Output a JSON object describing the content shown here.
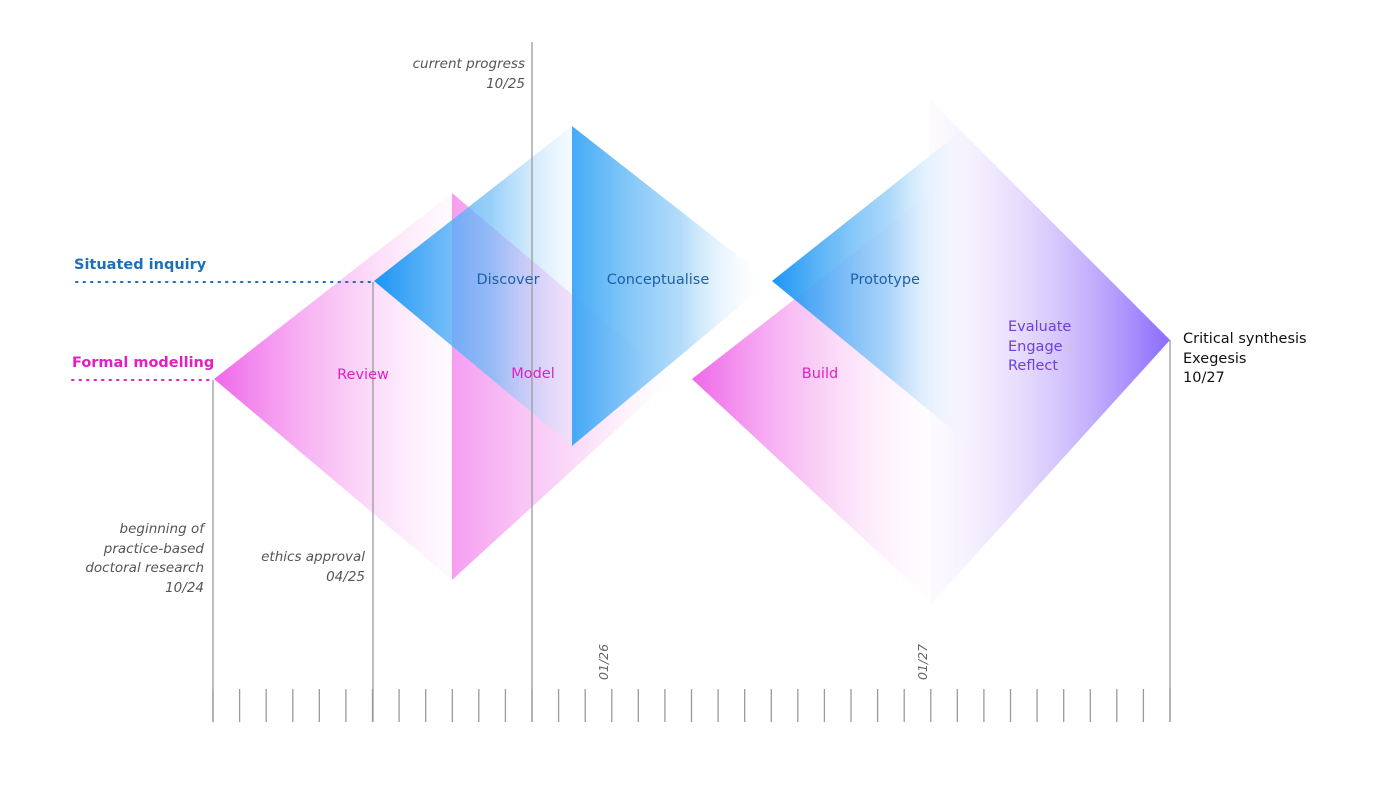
{
  "colors": {
    "situated": "#1e6fb5",
    "formal": "#e020c0",
    "blue": "#1a9af5",
    "magenta": "#ee66ee",
    "purple": "#8866ff",
    "purple_text": "#6f3fd8",
    "blue_text": "#1f5fa8",
    "axis": "#9a9a9a"
  },
  "lanes": {
    "situated": "Situated inquiry",
    "formal": "Formal modelling"
  },
  "phases": {
    "discover": "Discover",
    "conceptualise": "Conceptualise",
    "prototype": "Prototype",
    "review": "Review",
    "model": "Model",
    "build": "Build",
    "evaluate": "Evaluate",
    "engage": "Engage",
    "reflect": "Reflect"
  },
  "milestones": {
    "current": {
      "line1": "current progress",
      "line2": "10/25"
    },
    "start": {
      "line1": "beginning of",
      "line2": "practice-based",
      "line3": "doctoral research",
      "line4": "10/24"
    },
    "ethics": {
      "line1": "ethics approval",
      "line2": "04/25"
    },
    "end": {
      "line1": "Critical synthesis",
      "line2": "Exegesis",
      "line3": "10/27"
    }
  },
  "timeline": {
    "tick_labels": [
      "01/26",
      "01/27"
    ]
  }
}
